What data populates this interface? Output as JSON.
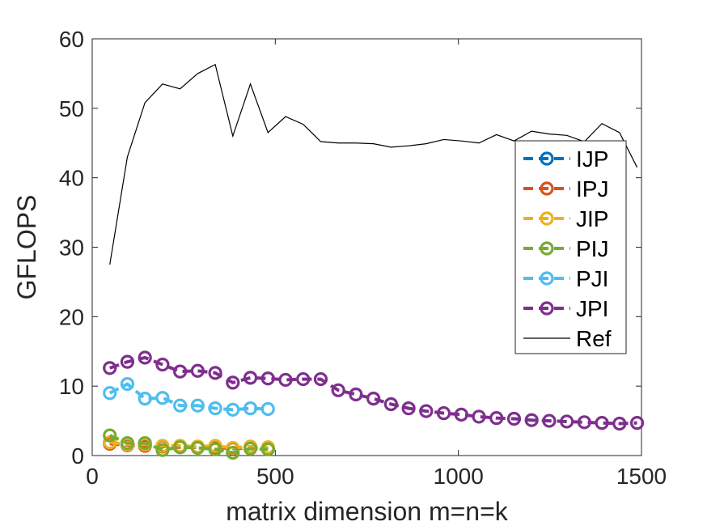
{
  "chart_data": {
    "type": "line",
    "title": "",
    "xlabel": "matrix dimension m=n=k",
    "ylabel": "GFLOPS",
    "xlim": [
      0,
      1500
    ],
    "ylim": [
      0,
      60
    ],
    "xticks": [
      0,
      500,
      1000,
      1500
    ],
    "yticks": [
      0,
      10,
      20,
      30,
      40,
      50,
      60
    ],
    "xtick_labels": [
      "0",
      "500",
      "1000",
      "1500"
    ],
    "ytick_labels": [
      "0",
      "10",
      "20",
      "30",
      "40",
      "50",
      "60"
    ],
    "grid": false,
    "legend_position": "right",
    "series": [
      {
        "name": "IJP",
        "color": "#0072BD",
        "style": "dashed-circle",
        "x": [
          48,
          96,
          144,
          192,
          240,
          288,
          336,
          384,
          432,
          480
        ],
        "y": [
          1.8,
          1.5,
          1.5,
          1.3,
          1.3,
          1.2,
          1.2,
          1.0,
          1.1,
          1.0
        ]
      },
      {
        "name": "IPJ",
        "color": "#D95319",
        "style": "dashed-circle",
        "x": [
          48,
          96,
          144,
          192,
          240,
          288,
          336,
          384,
          432,
          480
        ],
        "y": [
          1.7,
          1.5,
          1.4,
          1.3,
          1.2,
          1.2,
          1.2,
          1.0,
          1.1,
          1.0
        ]
      },
      {
        "name": "JIP",
        "color": "#EDB120",
        "style": "dashed-circle",
        "x": [
          48,
          96,
          144,
          192,
          240,
          288,
          336,
          384,
          432,
          480
        ],
        "y": [
          1.9,
          1.6,
          1.6,
          1.4,
          1.4,
          1.3,
          1.4,
          1.1,
          1.3,
          1.2
        ]
      },
      {
        "name": "PIJ",
        "color": "#77AC30",
        "style": "dashed-circle",
        "x": [
          48,
          96,
          144,
          192,
          240,
          288,
          336,
          384,
          432,
          480
        ],
        "y": [
          2.9,
          1.8,
          1.8,
          0.8,
          1.2,
          1.1,
          0.9,
          0.4,
          1.0,
          0.9
        ]
      },
      {
        "name": "PJI",
        "color": "#4DBEEE",
        "style": "dashed-circle",
        "x": [
          48,
          96,
          144,
          192,
          240,
          288,
          336,
          384,
          432,
          480
        ],
        "y": [
          9.0,
          10.3,
          8.2,
          8.3,
          7.2,
          7.2,
          6.8,
          6.6,
          6.8,
          6.7
        ]
      },
      {
        "name": "JPI",
        "color": "#7E2F8E",
        "style": "dashed-circle",
        "x": [
          48,
          96,
          144,
          192,
          240,
          288,
          336,
          384,
          432,
          480,
          528,
          576,
          624,
          672,
          720,
          768,
          816,
          864,
          912,
          960,
          1008,
          1056,
          1104,
          1152,
          1200,
          1248,
          1296,
          1344,
          1392,
          1440,
          1488
        ],
        "y": [
          12.6,
          13.5,
          14.1,
          13.1,
          12.1,
          12.2,
          11.9,
          10.5,
          11.2,
          11.1,
          10.9,
          11.0,
          11.0,
          9.4,
          8.8,
          8.2,
          7.4,
          6.8,
          6.4,
          6.1,
          5.9,
          5.6,
          5.4,
          5.3,
          5.1,
          5.0,
          4.9,
          4.8,
          4.7,
          4.6,
          4.7
        ]
      },
      {
        "name": "Ref",
        "color": "#000000",
        "style": "solid",
        "x": [
          48,
          96,
          144,
          192,
          240,
          288,
          336,
          384,
          432,
          480,
          528,
          576,
          624,
          672,
          720,
          768,
          816,
          864,
          912,
          960,
          1008,
          1056,
          1104,
          1152,
          1200,
          1248,
          1296,
          1344,
          1392,
          1440,
          1488
        ],
        "y": [
          27.5,
          43.0,
          50.8,
          53.5,
          52.8,
          55.0,
          56.3,
          46.0,
          53.5,
          46.5,
          48.8,
          47.7,
          45.2,
          45.0,
          45.0,
          44.9,
          44.4,
          44.6,
          44.9,
          45.5,
          45.3,
          45.0,
          46.2,
          45.3,
          46.7,
          46.3,
          46.1,
          45.2,
          47.8,
          46.5,
          41.5
        ]
      }
    ]
  }
}
